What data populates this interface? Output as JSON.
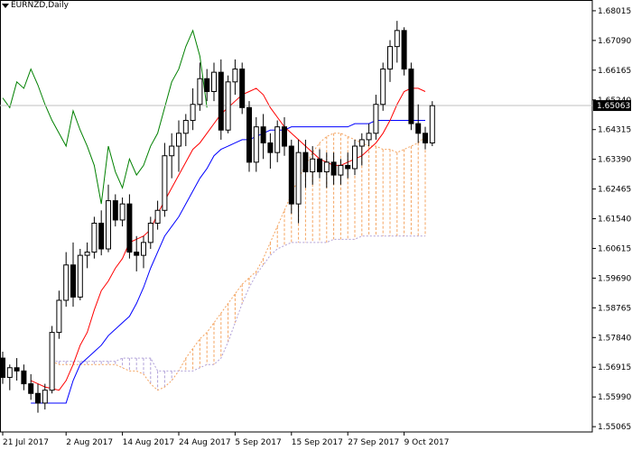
{
  "header": {
    "symbol_label": "EURNZD,Daily"
  },
  "chart_data": {
    "type": "candlestick",
    "symbol": "EURNZD",
    "timeframe": "Daily",
    "ylim": [
      1.549,
      1.6835
    ],
    "y_ticks": [
      "1.68015",
      "1.67090",
      "1.66165",
      "1.65240",
      "1.64315",
      "1.63390",
      "1.62465",
      "1.61540",
      "1.60615",
      "1.59690",
      "1.58765",
      "1.57840",
      "1.56915",
      "1.55990",
      "1.55065"
    ],
    "x_ticks": [
      {
        "index": 0,
        "label": "21 Jul 2017"
      },
      {
        "index": 9,
        "label": "2 Aug 2017"
      },
      {
        "index": 17,
        "label": "14 Aug 2017"
      },
      {
        "index": 25,
        "label": "24 Aug 2017"
      },
      {
        "index": 33,
        "label": "5 Sep 2017"
      },
      {
        "index": 41,
        "label": "15 Sep 2017"
      },
      {
        "index": 49,
        "label": "27 Sep 2017"
      },
      {
        "index": 57,
        "label": "9 Oct 2017"
      }
    ],
    "current_price": "1.65063",
    "colors": {
      "bull_fill": "#ffffff",
      "bear_fill": "#000000",
      "tenkan": "#ff0000",
      "kijun": "#0000ff",
      "chikou": "#008000",
      "cloud_up": "#f4a460",
      "cloud_down": "#b0a0d8",
      "grid_line": "#c0c0c0"
    },
    "candles": [
      [
        1.572,
        1.574,
        1.564,
        1.566
      ],
      [
        1.566,
        1.57,
        1.562,
        1.569
      ],
      [
        1.569,
        1.572,
        1.565,
        1.568
      ],
      [
        1.568,
        1.57,
        1.562,
        1.564
      ],
      [
        1.564,
        1.567,
        1.559,
        1.561
      ],
      [
        1.561,
        1.564,
        1.555,
        1.558
      ],
      [
        1.558,
        1.564,
        1.556,
        1.562
      ],
      [
        1.562,
        1.582,
        1.561,
        1.58
      ],
      [
        1.58,
        1.593,
        1.578,
        1.59
      ],
      [
        1.59,
        1.605,
        1.588,
        1.601
      ],
      [
        1.601,
        1.608,
        1.588,
        1.591
      ],
      [
        1.591,
        1.606,
        1.59,
        1.604
      ],
      [
        1.604,
        1.608,
        1.6,
        1.605
      ],
      [
        1.605,
        1.616,
        1.603,
        1.614
      ],
      [
        1.614,
        1.618,
        1.604,
        1.606
      ],
      [
        1.606,
        1.626,
        1.605,
        1.621
      ],
      [
        1.621,
        1.623,
        1.613,
        1.615
      ],
      [
        1.615,
        1.622,
        1.613,
        1.62
      ],
      [
        1.62,
        1.623,
        1.603,
        1.605
      ],
      [
        1.605,
        1.61,
        1.599,
        1.604
      ],
      [
        1.604,
        1.61,
        1.6,
        1.608
      ],
      [
        1.608,
        1.616,
        1.606,
        1.614
      ],
      [
        1.614,
        1.621,
        1.612,
        1.618
      ],
      [
        1.618,
        1.639,
        1.616,
        1.635
      ],
      [
        1.635,
        1.642,
        1.628,
        1.638
      ],
      [
        1.638,
        1.646,
        1.63,
        1.642
      ],
      [
        1.642,
        1.648,
        1.638,
        1.646
      ],
      [
        1.646,
        1.656,
        1.643,
        1.651
      ],
      [
        1.651,
        1.664,
        1.649,
        1.659
      ],
      [
        1.659,
        1.662,
        1.652,
        1.655
      ],
      [
        1.655,
        1.664,
        1.652,
        1.661
      ],
      [
        1.661,
        1.665,
        1.64,
        1.643
      ],
      [
        1.643,
        1.66,
        1.642,
        1.658
      ],
      [
        1.658,
        1.665,
        1.654,
        1.662
      ],
      [
        1.662,
        1.664,
        1.648,
        1.65
      ],
      [
        1.65,
        1.652,
        1.63,
        1.633
      ],
      [
        1.633,
        1.647,
        1.63,
        1.644
      ],
      [
        1.644,
        1.648,
        1.634,
        1.639
      ],
      [
        1.639,
        1.642,
        1.631,
        1.636
      ],
      [
        1.636,
        1.646,
        1.633,
        1.644
      ],
      [
        1.644,
        1.647,
        1.635,
        1.638
      ],
      [
        1.638,
        1.64,
        1.617,
        1.62
      ],
      [
        1.62,
        1.64,
        1.614,
        1.636
      ],
      [
        1.636,
        1.64,
        1.625,
        1.63
      ],
      [
        1.63,
        1.638,
        1.626,
        1.634
      ],
      [
        1.634,
        1.637,
        1.628,
        1.63
      ],
      [
        1.63,
        1.636,
        1.625,
        1.633
      ],
      [
        1.633,
        1.636,
        1.626,
        1.629
      ],
      [
        1.629,
        1.634,
        1.626,
        1.632
      ],
      [
        1.632,
        1.636,
        1.628,
        1.631
      ],
      [
        1.631,
        1.64,
        1.629,
        1.638
      ],
      [
        1.638,
        1.642,
        1.632,
        1.64
      ],
      [
        1.64,
        1.645,
        1.638,
        1.642
      ],
      [
        1.642,
        1.654,
        1.64,
        1.651
      ],
      [
        1.651,
        1.664,
        1.649,
        1.662
      ],
      [
        1.662,
        1.671,
        1.658,
        1.669
      ],
      [
        1.669,
        1.677,
        1.664,
        1.674
      ],
      [
        1.674,
        1.675,
        1.66,
        1.662
      ],
      [
        1.662,
        1.664,
        1.643,
        1.645
      ],
      [
        1.645,
        1.651,
        1.639,
        1.642
      ],
      [
        1.642,
        1.644,
        1.637,
        1.639
      ],
      [
        1.639,
        1.652,
        1.638,
        1.6506
      ]
    ],
    "tenkan": [
      1.565,
      1.564,
      1.563,
      1.5625,
      1.562,
      1.565,
      1.57,
      1.576,
      1.58,
      1.587,
      1.593,
      1.596,
      1.6,
      1.603,
      1.608,
      1.609,
      1.61,
      1.612,
      1.617,
      1.621,
      1.625,
      1.629,
      1.633,
      1.637,
      1.639,
      1.642,
      1.645,
      1.648,
      1.65,
      1.652,
      1.654,
      1.655,
      1.656,
      1.654,
      1.65,
      1.647,
      1.644,
      1.642,
      1.64,
      1.638,
      1.636,
      1.634,
      1.633,
      1.632,
      1.632,
      1.633,
      1.634,
      1.635,
      1.637,
      1.639,
      1.642,
      1.646,
      1.651,
      1.655,
      1.656,
      1.656,
      1.655
    ],
    "kijun": [
      1.558,
      1.558,
      1.558,
      1.558,
      1.558,
      1.558,
      1.565,
      1.57,
      1.572,
      1.574,
      1.576,
      1.579,
      1.581,
      1.583,
      1.585,
      1.589,
      1.594,
      1.6,
      1.605,
      1.61,
      1.613,
      1.616,
      1.62,
      1.624,
      1.628,
      1.631,
      1.635,
      1.637,
      1.638,
      1.639,
      1.64,
      1.64,
      1.641,
      1.642,
      1.643,
      1.643,
      1.643,
      1.644,
      1.644,
      1.644,
      1.644,
      1.644,
      1.644,
      1.644,
      1.644,
      1.644,
      1.645,
      1.645,
      1.645,
      1.646,
      1.646,
      1.646,
      1.646,
      1.646,
      1.646,
      1.646,
      1.646
    ],
    "chikou": [
      1.653,
      1.65,
      1.658,
      1.656,
      1.662,
      1.657,
      1.651,
      1.646,
      1.642,
      1.638,
      1.649,
      1.643,
      1.638,
      1.632,
      1.62,
      1.638,
      1.63,
      1.625,
      1.634,
      1.629,
      1.632,
      1.638,
      1.642,
      1.65,
      1.658,
      1.662,
      1.669,
      1.674,
      1.666,
      1.65
    ],
    "senkou_a": [
      1.571,
      1.57,
      1.57,
      1.57,
      1.57,
      1.57,
      1.57,
      1.57,
      1.57,
      1.57,
      1.569,
      1.568,
      1.568,
      1.567,
      1.564,
      1.562,
      1.563,
      1.565,
      1.568,
      1.572,
      1.575,
      1.578,
      1.58,
      1.583,
      1.586,
      1.589,
      1.592,
      1.595,
      1.597,
      1.599,
      1.603,
      1.608,
      1.613,
      1.618,
      1.623,
      1.628,
      1.632,
      1.636,
      1.639,
      1.641,
      1.642,
      1.642,
      1.641,
      1.64,
      1.639,
      1.638,
      1.638,
      1.637,
      1.637,
      1.636,
      1.637,
      1.638,
      1.639,
      1.641
    ],
    "senkou_b": [
      1.571,
      1.571,
      1.571,
      1.571,
      1.571,
      1.571,
      1.571,
      1.571,
      1.571,
      1.571,
      1.572,
      1.572,
      1.572,
      1.572,
      1.572,
      1.568,
      1.568,
      1.568,
      1.568,
      1.568,
      1.568,
      1.569,
      1.57,
      1.57,
      1.572,
      1.577,
      1.583,
      1.589,
      1.594,
      1.598,
      1.601,
      1.604,
      1.606,
      1.607,
      1.608,
      1.608,
      1.608,
      1.608,
      1.608,
      1.608,
      1.609,
      1.609,
      1.609,
      1.609,
      1.61,
      1.61,
      1.61,
      1.61,
      1.61,
      1.61,
      1.61,
      1.61,
      1.61,
      1.61
    ]
  }
}
